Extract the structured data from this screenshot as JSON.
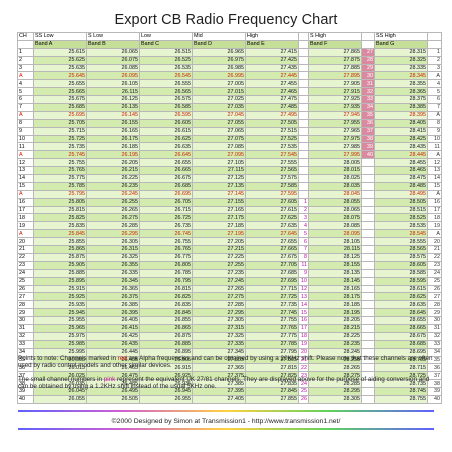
{
  "title": "Export CB Radio Frequency Chart",
  "headers": [
    "CH",
    "SS Low",
    "S Low",
    "Low",
    "Mid",
    "High",
    "",
    "S High",
    "",
    "SS High",
    ""
  ],
  "bands": [
    "Band A",
    "Band B",
    "Band C",
    "Band D",
    "Band E",
    "Band F",
    "Band G"
  ],
  "rows": [
    {
      "ch": "1",
      "a": "25.615",
      "b": "26.065",
      "c": "26.515",
      "d": "26.965",
      "e": "27.415",
      "fs": "",
      "f": "27.865",
      "fn": "27",
      "g": "28.315",
      "gn": "1"
    },
    {
      "ch": "2",
      "a": "25.625",
      "b": "26.075",
      "c": "26.525",
      "d": "26.975",
      "e": "27.425",
      "fs": "",
      "f": "27.875",
      "fn": "28",
      "g": "28.325",
      "gn": "2"
    },
    {
      "ch": "3",
      "a": "25.635",
      "b": "26.085",
      "c": "26.535",
      "d": "26.985",
      "e": "27.435",
      "fs": "",
      "f": "27.885",
      "fn": "29",
      "g": "28.335",
      "gn": "3"
    },
    {
      "ch": "A",
      "a": "25.645",
      "b": "26.095",
      "c": "26.545",
      "d": "26.995",
      "e": "27.445",
      "fs": "",
      "f": "27.895",
      "fn": "30",
      "g": "28.345",
      "gn": "A"
    },
    {
      "ch": "4",
      "a": "25.655",
      "b": "26.105",
      "c": "26.555",
      "d": "27.005",
      "e": "27.455",
      "fs": "",
      "f": "27.905",
      "fn": "31",
      "g": "28.355",
      "gn": "4"
    },
    {
      "ch": "5",
      "a": "25.665",
      "b": "26.115",
      "c": "26.565",
      "d": "27.015",
      "e": "27.465",
      "fs": "",
      "f": "27.915",
      "fn": "32",
      "g": "28.365",
      "gn": "5"
    },
    {
      "ch": "6",
      "a": "25.675",
      "b": "26.125",
      "c": "26.575",
      "d": "27.025",
      "e": "27.475",
      "fs": "",
      "f": "27.925",
      "fn": "33",
      "g": "28.375",
      "gn": "6"
    },
    {
      "ch": "7",
      "a": "25.685",
      "b": "26.135",
      "c": "26.585",
      "d": "27.035",
      "e": "27.485",
      "fs": "",
      "f": "27.935",
      "fn": "34",
      "g": "28.385",
      "gn": "7"
    },
    {
      "ch": "A",
      "a": "25.695",
      "b": "26.145",
      "c": "26.595",
      "d": "27.045",
      "e": "27.495",
      "fs": "",
      "f": "27.945",
      "fn": "35",
      "g": "28.395",
      "gn": "A"
    },
    {
      "ch": "8",
      "a": "25.705",
      "b": "26.155",
      "c": "26.605",
      "d": "27.055",
      "e": "27.505",
      "fs": "",
      "f": "27.955",
      "fn": "36",
      "g": "28.405",
      "gn": "8"
    },
    {
      "ch": "9",
      "a": "25.715",
      "b": "26.165",
      "c": "26.615",
      "d": "27.065",
      "e": "27.515",
      "fs": "",
      "f": "27.965",
      "fn": "37",
      "g": "28.415",
      "gn": "9"
    },
    {
      "ch": "10",
      "a": "25.725",
      "b": "26.175",
      "c": "26.625",
      "d": "27.075",
      "e": "27.525",
      "fs": "",
      "f": "27.975",
      "fn": "38",
      "g": "28.425",
      "gn": "10"
    },
    {
      "ch": "11",
      "a": "25.735",
      "b": "26.185",
      "c": "26.635",
      "d": "27.085",
      "e": "27.535",
      "fs": "",
      "f": "27.985",
      "fn": "39",
      "g": "28.435",
      "gn": "11"
    },
    {
      "ch": "A",
      "a": "25.745",
      "b": "26.195",
      "c": "26.645",
      "d": "27.095",
      "e": "27.545",
      "fs": "",
      "f": "27.995",
      "fn": "40",
      "g": "28.445",
      "gn": "A"
    },
    {
      "ch": "12",
      "a": "25.755",
      "b": "26.205",
      "c": "26.655",
      "d": "27.105",
      "e": "27.555",
      "fs": "",
      "f": "28.005",
      "fn": "",
      "g": "28.455",
      "gn": "12"
    },
    {
      "ch": "13",
      "a": "25.765",
      "b": "26.215",
      "c": "26.665",
      "d": "27.115",
      "e": "27.565",
      "fs": "",
      "f": "28.015",
      "fn": "",
      "g": "28.465",
      "gn": "13"
    },
    {
      "ch": "14",
      "a": "25.775",
      "b": "26.225",
      "c": "26.675",
      "d": "27.125",
      "e": "27.575",
      "fs": "",
      "f": "28.025",
      "fn": "",
      "g": "28.475",
      "gn": "14"
    },
    {
      "ch": "15",
      "a": "25.785",
      "b": "26.235",
      "c": "26.685",
      "d": "27.135",
      "e": "27.585",
      "fs": "",
      "f": "28.035",
      "fn": "",
      "g": "28.485",
      "gn": "15"
    },
    {
      "ch": "A",
      "a": "25.795",
      "b": "26.245",
      "c": "26.695",
      "d": "27.145",
      "e": "27.595",
      "fs": "",
      "f": "28.045",
      "fn": "",
      "g": "28.495",
      "gn": "A"
    },
    {
      "ch": "16",
      "a": "25.805",
      "b": "26.255",
      "c": "26.705",
      "d": "27.155",
      "e": "27.605",
      "fs": "1",
      "f": "28.055",
      "fn": "",
      "g": "28.505",
      "gn": "16"
    },
    {
      "ch": "17",
      "a": "25.815",
      "b": "26.265",
      "c": "26.715",
      "d": "27.165",
      "e": "27.615",
      "fs": "2",
      "f": "28.065",
      "fn": "",
      "g": "28.515",
      "gn": "17"
    },
    {
      "ch": "18",
      "a": "25.825",
      "b": "26.275",
      "c": "26.725",
      "d": "27.175",
      "e": "27.625",
      "fs": "3",
      "f": "28.075",
      "fn": "",
      "g": "28.525",
      "gn": "18"
    },
    {
      "ch": "19",
      "a": "25.835",
      "b": "26.285",
      "c": "26.735",
      "d": "27.185",
      "e": "27.635",
      "fs": "4",
      "f": "28.085",
      "fn": "",
      "g": "28.535",
      "gn": "19"
    },
    {
      "ch": "A",
      "a": "25.845",
      "b": "26.295",
      "c": "26.745",
      "d": "27.195",
      "e": "27.645",
      "fs": "5",
      "f": "28.095",
      "fn": "",
      "g": "28.545",
      "gn": "A"
    },
    {
      "ch": "20",
      "a": "25.855",
      "b": "26.305",
      "c": "26.755",
      "d": "27.205",
      "e": "27.655",
      "fs": "6",
      "f": "28.105",
      "fn": "",
      "g": "28.555",
      "gn": "20"
    },
    {
      "ch": "21",
      "a": "25.865",
      "b": "26.315",
      "c": "26.765",
      "d": "27.215",
      "e": "27.665",
      "fs": "7",
      "f": "28.115",
      "fn": "",
      "g": "28.565",
      "gn": "21"
    },
    {
      "ch": "22",
      "a": "25.875",
      "b": "26.325",
      "c": "26.775",
      "d": "27.225",
      "e": "27.675",
      "fs": "8",
      "f": "28.125",
      "fn": "",
      "g": "28.575",
      "gn": "22"
    },
    {
      "ch": "23",
      "a": "25.905",
      "b": "26.355",
      "c": "26.805",
      "d": "27.255",
      "e": "27.705",
      "fs": "11",
      "f": "28.155",
      "fn": "",
      "g": "28.605",
      "gn": "23"
    },
    {
      "ch": "24",
      "a": "25.885",
      "b": "26.335",
      "c": "26.785",
      "d": "27.235",
      "e": "27.685",
      "fs": "9",
      "f": "28.135",
      "fn": "",
      "g": "28.585",
      "gn": "24"
    },
    {
      "ch": "25",
      "a": "25.895",
      "b": "26.345",
      "c": "26.795",
      "d": "27.245",
      "e": "27.695",
      "fs": "10",
      "f": "28.145",
      "fn": "",
      "g": "28.595",
      "gn": "25"
    },
    {
      "ch": "26",
      "a": "25.915",
      "b": "26.365",
      "c": "26.815",
      "d": "27.265",
      "e": "27.715",
      "fs": "12",
      "f": "28.165",
      "fn": "",
      "g": "28.615",
      "gn": "26"
    },
    {
      "ch": "27",
      "a": "25.925",
      "b": "26.375",
      "c": "26.825",
      "d": "27.275",
      "e": "27.725",
      "fs": "13",
      "f": "28.175",
      "fn": "",
      "g": "28.625",
      "gn": "27"
    },
    {
      "ch": "28",
      "a": "25.935",
      "b": "26.385",
      "c": "26.835",
      "d": "27.285",
      "e": "27.735",
      "fs": "14",
      "f": "28.185",
      "fn": "",
      "g": "28.635",
      "gn": "28"
    },
    {
      "ch": "29",
      "a": "25.945",
      "b": "26.395",
      "c": "26.845",
      "d": "27.295",
      "e": "27.745",
      "fs": "15",
      "f": "28.195",
      "fn": "",
      "g": "28.645",
      "gn": "29"
    },
    {
      "ch": "30",
      "a": "25.955",
      "b": "26.405",
      "c": "26.855",
      "d": "27.305",
      "e": "27.755",
      "fs": "16",
      "f": "28.205",
      "fn": "",
      "g": "28.655",
      "gn": "30"
    },
    {
      "ch": "31",
      "a": "25.965",
      "b": "26.415",
      "c": "26.865",
      "d": "27.315",
      "e": "27.765",
      "fs": "17",
      "f": "28.215",
      "fn": "",
      "g": "28.665",
      "gn": "31"
    },
    {
      "ch": "32",
      "a": "25.975",
      "b": "26.425",
      "c": "26.875",
      "d": "27.325",
      "e": "27.775",
      "fs": "18",
      "f": "28.225",
      "fn": "",
      "g": "28.675",
      "gn": "32"
    },
    {
      "ch": "33",
      "a": "25.985",
      "b": "26.435",
      "c": "26.885",
      "d": "27.335",
      "e": "27.785",
      "fs": "19",
      "f": "28.235",
      "fn": "",
      "g": "28.685",
      "gn": "33"
    },
    {
      "ch": "34",
      "a": "25.995",
      "b": "26.445",
      "c": "26.895",
      "d": "27.345",
      "e": "27.795",
      "fs": "20",
      "f": "28.245",
      "fn": "",
      "g": "28.695",
      "gn": "34"
    },
    {
      "ch": "35",
      "a": "26.005",
      "b": "26.455",
      "c": "26.905",
      "d": "27.355",
      "e": "27.805",
      "fs": "21",
      "f": "28.255",
      "fn": "",
      "g": "28.705",
      "gn": "35"
    },
    {
      "ch": "36",
      "a": "26.015",
      "b": "26.465",
      "c": "26.915",
      "d": "27.365",
      "e": "27.815",
      "fs": "22",
      "f": "28.265",
      "fn": "",
      "g": "28.715",
      "gn": "36"
    },
    {
      "ch": "37",
      "a": "26.025",
      "b": "26.475",
      "c": "26.925",
      "d": "27.375",
      "e": "27.825",
      "fs": "23",
      "f": "28.275",
      "fn": "",
      "g": "28.725",
      "gn": "37"
    },
    {
      "ch": "38",
      "a": "26.035",
      "b": "26.485",
      "c": "26.935",
      "d": "27.385",
      "e": "27.835",
      "fs": "24",
      "f": "28.285",
      "fn": "",
      "g": "28.735",
      "gn": "38"
    },
    {
      "ch": "39",
      "a": "26.045",
      "b": "26.495",
      "c": "26.945",
      "d": "27.395",
      "e": "27.845",
      "fs": "25",
      "f": "28.295",
      "fn": "",
      "g": "28.745",
      "gn": "39"
    },
    {
      "ch": "40",
      "a": "26.055",
      "b": "26.505",
      "c": "26.955",
      "d": "27.405",
      "e": "27.855",
      "fs": "26",
      "f": "28.305",
      "fn": "",
      "g": "28.755",
      "gn": "40"
    }
  ],
  "notes": {
    "p1_before": "Points to note: Channels marked in ",
    "p1_red": "red",
    "p1_after": " are Alpha frequencies and can be obtained by using a 20KHz shift. Please note that these channels are often used by radio control models and other similar devices.",
    "p2_before": "The small channel numbers in ",
    "p2_pink": "pink",
    "p2_after": " represent the equivalent UK 27/81 channels. They are displayed above for the purpose of aiding conversion and can be obtained by using a 1.2KHz shift instead of the usual 5KHz one."
  },
  "footer": "©2000 Designed by Simon at Transmission1 - http://www.transmission1.net/",
  "colors": {
    "band_header_green": "#c6df98",
    "cell_green": "#d3ebae",
    "alpha_red": "#dd1100",
    "uk_pink": "#d98aa0",
    "uk_magenta": "#c0109e"
  }
}
